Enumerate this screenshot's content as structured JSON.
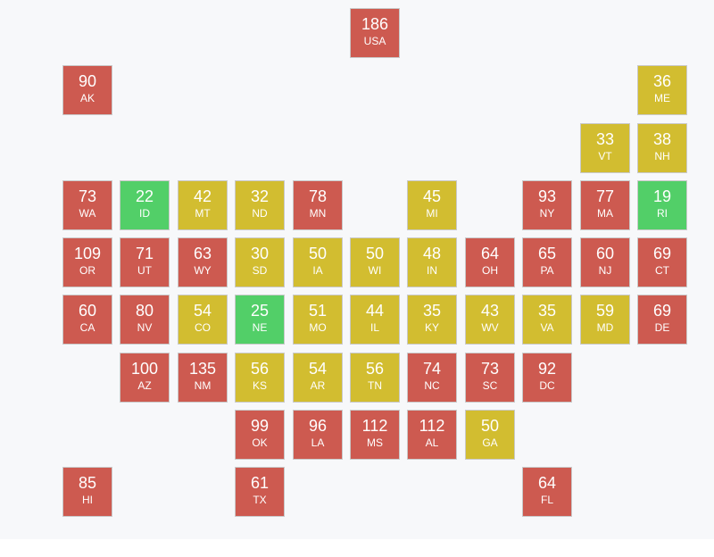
{
  "colors": {
    "red": "#cd5a50",
    "yellow": "#d2bd30",
    "green": "#52cf68"
  },
  "tiles": [
    {
      "abbr": "USA",
      "value": "186",
      "status": "red"
    },
    {
      "abbr": "AK",
      "value": "90",
      "status": "red"
    },
    {
      "abbr": "ME",
      "value": "36",
      "status": "yellow"
    },
    {
      "abbr": "VT",
      "value": "33",
      "status": "yellow"
    },
    {
      "abbr": "NH",
      "value": "38",
      "status": "yellow"
    },
    {
      "abbr": "WA",
      "value": "73",
      "status": "red"
    },
    {
      "abbr": "ID",
      "value": "22",
      "status": "green"
    },
    {
      "abbr": "MT",
      "value": "42",
      "status": "yellow"
    },
    {
      "abbr": "ND",
      "value": "32",
      "status": "yellow"
    },
    {
      "abbr": "MN",
      "value": "78",
      "status": "red"
    },
    {
      "abbr": "MI",
      "value": "45",
      "status": "yellow"
    },
    {
      "abbr": "NY",
      "value": "93",
      "status": "red"
    },
    {
      "abbr": "MA",
      "value": "77",
      "status": "red"
    },
    {
      "abbr": "RI",
      "value": "19",
      "status": "green"
    },
    {
      "abbr": "OR",
      "value": "109",
      "status": "red"
    },
    {
      "abbr": "UT",
      "value": "71",
      "status": "red"
    },
    {
      "abbr": "WY",
      "value": "63",
      "status": "red"
    },
    {
      "abbr": "SD",
      "value": "30",
      "status": "yellow"
    },
    {
      "abbr": "IA",
      "value": "50",
      "status": "yellow"
    },
    {
      "abbr": "WI",
      "value": "50",
      "status": "yellow"
    },
    {
      "abbr": "IN",
      "value": "48",
      "status": "yellow"
    },
    {
      "abbr": "OH",
      "value": "64",
      "status": "red"
    },
    {
      "abbr": "PA",
      "value": "65",
      "status": "red"
    },
    {
      "abbr": "NJ",
      "value": "60",
      "status": "red"
    },
    {
      "abbr": "CT",
      "value": "69",
      "status": "red"
    },
    {
      "abbr": "CA",
      "value": "60",
      "status": "red"
    },
    {
      "abbr": "NV",
      "value": "80",
      "status": "red"
    },
    {
      "abbr": "CO",
      "value": "54",
      "status": "yellow"
    },
    {
      "abbr": "NE",
      "value": "25",
      "status": "green"
    },
    {
      "abbr": "MO",
      "value": "51",
      "status": "yellow"
    },
    {
      "abbr": "IL",
      "value": "44",
      "status": "yellow"
    },
    {
      "abbr": "KY",
      "value": "35",
      "status": "yellow"
    },
    {
      "abbr": "WV",
      "value": "43",
      "status": "yellow"
    },
    {
      "abbr": "VA",
      "value": "35",
      "status": "yellow"
    },
    {
      "abbr": "MD",
      "value": "59",
      "status": "yellow"
    },
    {
      "abbr": "DE",
      "value": "69",
      "status": "red"
    },
    {
      "abbr": "AZ",
      "value": "100",
      "status": "red"
    },
    {
      "abbr": "NM",
      "value": "135",
      "status": "red"
    },
    {
      "abbr": "KS",
      "value": "56",
      "status": "yellow"
    },
    {
      "abbr": "AR",
      "value": "54",
      "status": "yellow"
    },
    {
      "abbr": "TN",
      "value": "56",
      "status": "yellow"
    },
    {
      "abbr": "NC",
      "value": "74",
      "status": "red"
    },
    {
      "abbr": "SC",
      "value": "73",
      "status": "red"
    },
    {
      "abbr": "DC",
      "value": "92",
      "status": "red"
    },
    {
      "abbr": "OK",
      "value": "99",
      "status": "red"
    },
    {
      "abbr": "LA",
      "value": "96",
      "status": "red"
    },
    {
      "abbr": "MS",
      "value": "112",
      "status": "red"
    },
    {
      "abbr": "AL",
      "value": "112",
      "status": "red"
    },
    {
      "abbr": "GA",
      "value": "50",
      "status": "yellow"
    },
    {
      "abbr": "HI",
      "value": "85",
      "status": "red"
    },
    {
      "abbr": "TX",
      "value": "61",
      "status": "red"
    },
    {
      "abbr": "FL",
      "value": "64",
      "status": "red"
    }
  ]
}
